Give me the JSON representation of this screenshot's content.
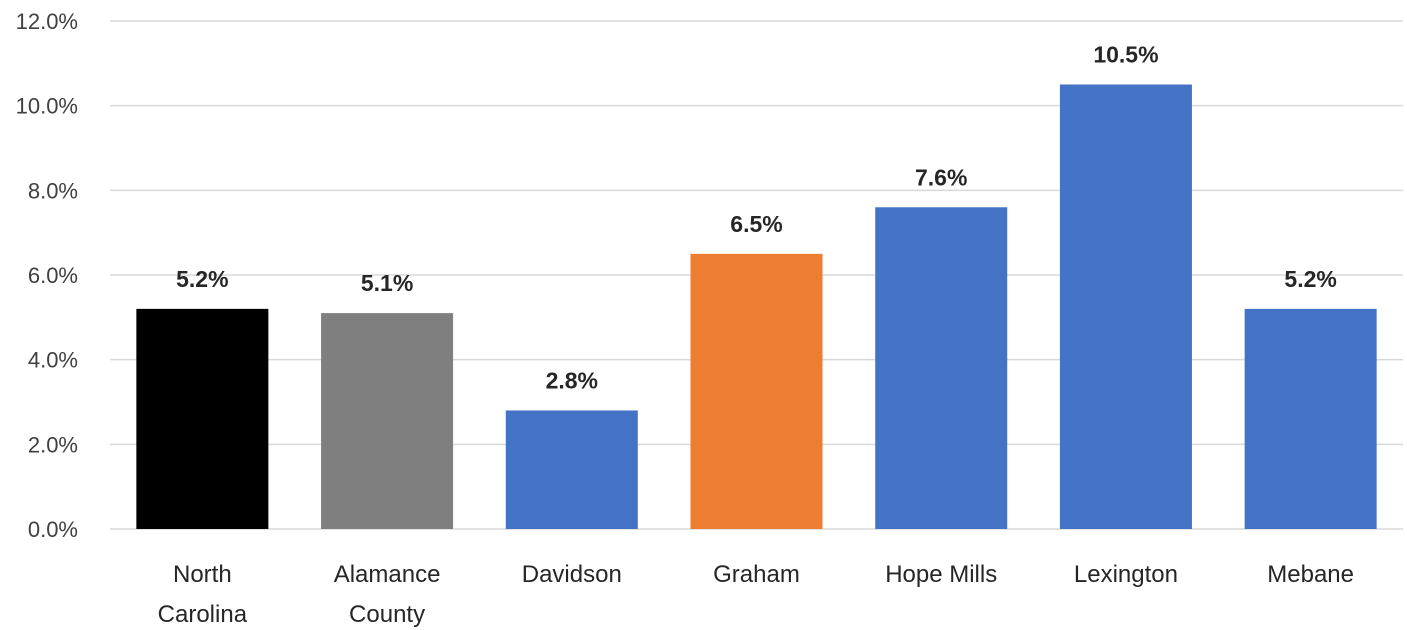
{
  "chart_data": {
    "type": "bar",
    "title": "",
    "xlabel": "",
    "ylabel": "",
    "ylim": [
      0,
      12
    ],
    "y_ticks": [
      "0.0%",
      "2.0%",
      "4.0%",
      "6.0%",
      "8.0%",
      "10.0%",
      "12.0%"
    ],
    "grid": true,
    "legend": "none",
    "categories": [
      [
        "North",
        "Carolina"
      ],
      [
        "Alamance",
        "County"
      ],
      [
        "Davidson"
      ],
      [
        "Graham"
      ],
      [
        "Hope Mills"
      ],
      [
        "Lexington"
      ],
      [
        "Mebane"
      ]
    ],
    "values": [
      5.2,
      5.1,
      2.8,
      6.5,
      7.6,
      10.5,
      5.2
    ],
    "data_labels": [
      "5.2%",
      "5.1%",
      "2.8%",
      "6.5%",
      "7.6%",
      "10.5%",
      "5.2%"
    ],
    "colors": [
      "#000000",
      "#7f7f7f",
      "#4472c4",
      "#ed7d31",
      "#4472c4",
      "#4472c4",
      "#4472c4"
    ]
  }
}
